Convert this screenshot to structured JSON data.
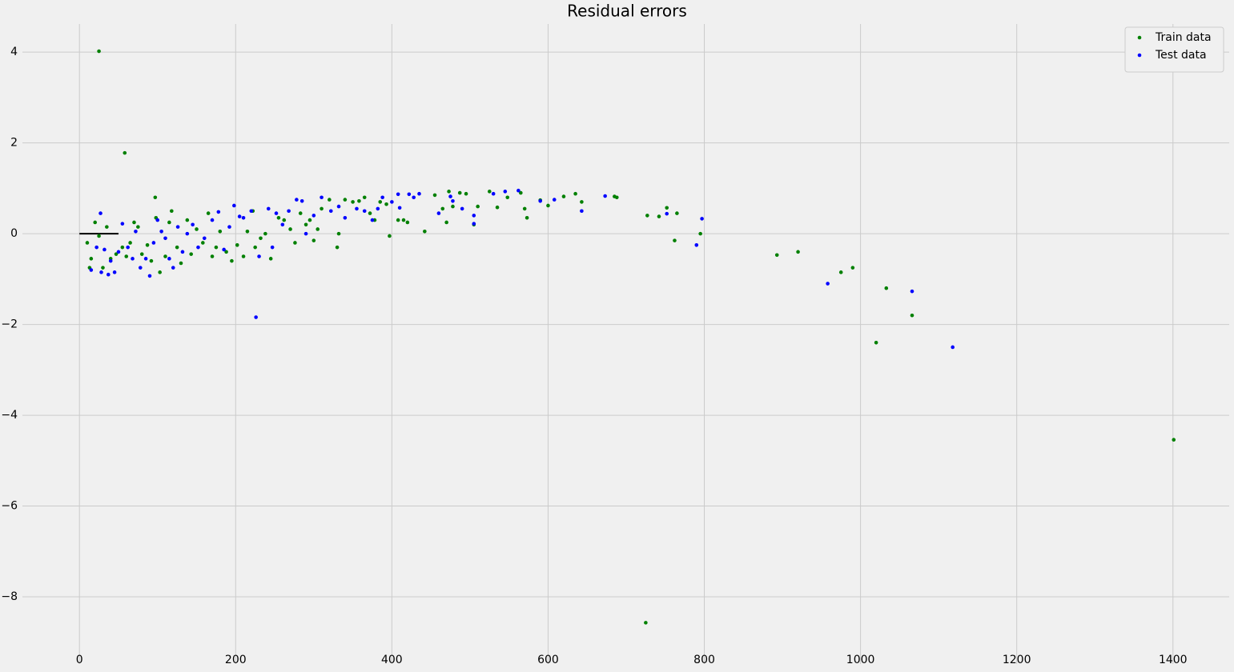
{
  "chart_data": {
    "type": "scatter",
    "title": "Residual errors",
    "xlim": [
      -73,
      1472
    ],
    "ylim": [
      -9.48,
      4.62
    ],
    "xticks": [
      0,
      200,
      400,
      600,
      800,
      1000,
      1200,
      1400
    ],
    "yticks": [
      {
        "value": -8,
        "label": "−8"
      },
      {
        "value": -6,
        "label": "−6"
      },
      {
        "value": -4,
        "label": "−4"
      },
      {
        "value": -2,
        "label": "−2"
      },
      0,
      2,
      4
    ],
    "grid": true,
    "legend": "upper right",
    "hline": {
      "y": 0,
      "xmin": 0,
      "xmax": 50,
      "color": "#000000"
    },
    "series": [
      {
        "name": "Train data",
        "color": "#008000",
        "x": [
          25,
          58,
          97,
          725,
          1401,
          1020,
          1066,
          1033,
          990,
          975,
          920,
          893,
          795,
          762,
          765,
          752,
          742,
          727,
          688,
          685,
          643,
          635,
          620,
          600,
          590,
          573,
          570,
          565,
          548,
          535,
          525,
          510,
          505,
          495,
          487,
          478,
          473,
          470,
          465,
          455,
          442,
          420,
          415,
          408,
          397,
          393,
          385,
          378,
          372,
          365,
          358,
          350,
          340,
          330,
          332,
          320,
          310,
          305,
          300,
          295,
          290,
          283,
          276,
          270,
          262,
          255,
          245,
          238,
          232,
          225,
          222,
          215,
          210,
          202,
          195,
          188,
          180,
          175,
          170,
          165,
          158,
          150,
          143,
          138,
          130,
          125,
          118,
          115,
          110,
          103,
          98,
          92,
          87,
          80,
          75,
          70,
          65,
          60,
          55,
          47,
          40,
          35,
          30,
          25,
          20,
          15,
          13,
          10
        ],
        "y": [
          4.02,
          1.78,
          0.8,
          -8.57,
          -4.54,
          -2.4,
          -1.8,
          -1.2,
          -0.75,
          -0.85,
          -0.4,
          -0.47,
          0,
          -0.15,
          0.45,
          0.57,
          0.38,
          0.4,
          0.8,
          0.82,
          0.7,
          0.88,
          0.82,
          0.62,
          0.74,
          0.35,
          0.55,
          0.9,
          0.8,
          0.58,
          0.93,
          0.6,
          0.2,
          0.88,
          0.9,
          0.6,
          0.93,
          0.25,
          0.55,
          0.85,
          0.05,
          0.25,
          0.3,
          0.3,
          -0.05,
          0.65,
          0.7,
          0.3,
          0.45,
          0.8,
          0.72,
          0.7,
          0.75,
          -0.3,
          0.0,
          0.75,
          0.55,
          0.1,
          -0.15,
          0.3,
          0.2,
          0.45,
          -0.2,
          0.1,
          0.3,
          0.35,
          -0.55,
          0.0,
          -0.1,
          -0.3,
          0.5,
          0.05,
          -0.5,
          -0.25,
          -0.6,
          -0.4,
          0.05,
          -0.3,
          -0.5,
          0.45,
          -0.2,
          0.1,
          -0.45,
          0.3,
          -0.65,
          -0.3,
          0.5,
          0.25,
          -0.5,
          -0.85,
          0.35,
          -0.6,
          -0.25,
          -0.45,
          0.15,
          0.25,
          -0.2,
          -0.5,
          -0.3,
          -0.45,
          -0.55,
          0.15,
          -0.75,
          -0.05,
          0.25,
          -0.55,
          -0.75,
          -0.2
        ]
      },
      {
        "name": "Test data",
        "color": "#0000ff",
        "x": [
          226,
          1118,
          1066,
          958,
          797,
          790,
          752,
          673,
          643,
          608,
          590,
          562,
          545,
          530,
          505,
          505,
          490,
          478,
          475,
          460,
          435,
          428,
          422,
          410,
          408,
          400,
          388,
          382,
          375,
          365,
          355,
          340,
          332,
          322,
          310,
          300,
          290,
          285,
          278,
          268,
          260,
          252,
          247,
          242,
          230,
          220,
          210,
          205,
          198,
          192,
          185,
          178,
          170,
          160,
          152,
          145,
          138,
          132,
          126,
          120,
          115,
          110,
          105,
          100,
          95,
          90,
          85,
          78,
          72,
          68,
          62,
          55,
          50,
          45,
          40,
          37,
          32,
          28,
          27,
          22,
          15
        ],
        "y": [
          -1.84,
          -2.5,
          -1.27,
          -1.1,
          0.33,
          -0.25,
          0.44,
          0.83,
          0.5,
          0.75,
          0.72,
          0.95,
          0.93,
          0.88,
          0.4,
          0.22,
          0.55,
          0.72,
          0.82,
          0.45,
          0.88,
          0.8,
          0.87,
          0.57,
          0.87,
          0.7,
          0.8,
          0.55,
          0.3,
          0.5,
          0.55,
          0.35,
          0.6,
          0.5,
          0.8,
          0.4,
          0.0,
          0.72,
          0.75,
          0.5,
          0.2,
          0.45,
          -0.3,
          0.55,
          -0.5,
          0.5,
          0.35,
          0.38,
          0.62,
          0.15,
          -0.35,
          0.48,
          0.3,
          -0.1,
          -0.3,
          0.2,
          0.0,
          -0.4,
          0.15,
          -0.75,
          -0.55,
          -0.1,
          0.05,
          0.3,
          -0.2,
          -0.93,
          -0.55,
          -0.75,
          0.05,
          -0.55,
          -0.3,
          0.22,
          -0.4,
          -0.85,
          -0.6,
          -0.9,
          -0.35,
          -0.85,
          0.45,
          -0.3,
          -0.8
        ]
      }
    ]
  }
}
